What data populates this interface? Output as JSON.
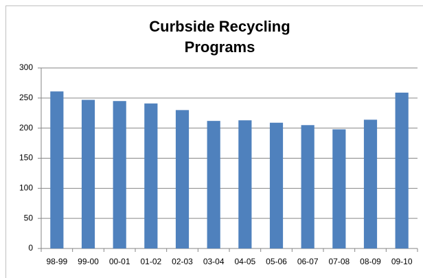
{
  "chart_data": {
    "type": "bar",
    "title": [
      "Curbside Recycling",
      "Programs"
    ],
    "categories": [
      "98-99",
      "99-00",
      "00-01",
      "01-02",
      "02-03",
      "03-04",
      "04-05",
      "05-06",
      "06-07",
      "07-08",
      "08-09",
      "09-10"
    ],
    "values": [
      261,
      247,
      245,
      241,
      230,
      212,
      213,
      209,
      205,
      198,
      214,
      259
    ],
    "color": "#4f81bd",
    "ylim": [
      0,
      300
    ],
    "yticks": [
      0,
      50,
      100,
      150,
      200,
      250,
      300
    ],
    "grid": true
  }
}
